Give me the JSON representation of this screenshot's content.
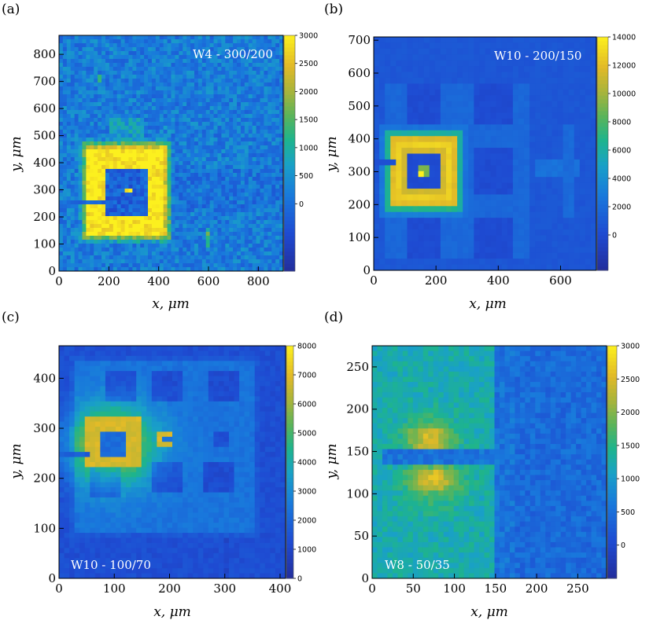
{
  "figure": {
    "panels": [
      {
        "label": "(a)"
      },
      {
        "label": "(b)"
      },
      {
        "label": "(c)"
      },
      {
        "label": "(d)"
      }
    ]
  },
  "chart_data": [
    {
      "type": "heatmap",
      "panel": "(a)",
      "title": "W4 - 300/200",
      "xlabel": "x, μm",
      "ylabel": "y, μm",
      "xlim": [
        0,
        900
      ],
      "ylim": [
        0,
        870
      ],
      "xticks": [
        0,
        200,
        400,
        600,
        800
      ],
      "yticks": [
        0,
        100,
        200,
        300,
        400,
        500,
        600,
        700,
        800
      ],
      "colorbar": {
        "range": [
          -1200,
          3000
        ],
        "ticks": [
          0,
          500,
          1000,
          1500,
          2000,
          2500,
          3000
        ]
      },
      "background_level": 250,
      "features": [
        {
          "kind": "square-ring",
          "center": [
            270,
            295
          ],
          "outer_half": [
            155,
            160
          ],
          "inner_half": [
            85,
            85
          ],
          "value": 3000
        },
        {
          "kind": "spot",
          "center": [
            280,
            295
          ],
          "value": 3000
        }
      ]
    },
    {
      "type": "heatmap",
      "panel": "(b)",
      "title": "W10 - 200/150",
      "xlabel": "x, μm",
      "ylabel": "y, μm",
      "xlim": [
        0,
        715
      ],
      "ylim": [
        0,
        710
      ],
      "xticks": [
        0,
        200,
        400,
        600
      ],
      "yticks": [
        0,
        100,
        200,
        300,
        400,
        500,
        600,
        700
      ],
      "colorbar": {
        "range": [
          -2500,
          14000
        ],
        "ticks": [
          0,
          2000,
          4000,
          6000,
          8000,
          10000,
          12000,
          14000
        ]
      },
      "background_level": 0,
      "features": [
        {
          "kind": "square-ring",
          "center": [
            160,
            300
          ],
          "outer_half": [
            110,
            110
          ],
          "inner_half": [
            60,
            60
          ],
          "value": 12500
        },
        {
          "kind": "spot",
          "center": [
            160,
            300
          ],
          "value": 13000
        }
      ]
    },
    {
      "type": "heatmap",
      "panel": "(c)",
      "title": "W10 - 100/70",
      "xlabel": "x, μm",
      "ylabel": "y, μm",
      "xlim": [
        0,
        410
      ],
      "ylim": [
        0,
        465
      ],
      "xticks": [
        0,
        100,
        200,
        300,
        400
      ],
      "yticks": [
        0,
        100,
        200,
        300,
        400
      ],
      "colorbar": {
        "range": [
          0,
          8000
        ],
        "ticks": [
          0,
          1000,
          2000,
          3000,
          4000,
          5000,
          6000,
          7000,
          8000
        ]
      },
      "background_level": 900,
      "features": [
        {
          "kind": "square-ring",
          "center": [
            95,
            270
          ],
          "outer_half": [
            55,
            55
          ],
          "inner_half": [
            28,
            28
          ],
          "value": 6500
        },
        {
          "kind": "spot",
          "center": [
            195,
            275
          ],
          "value": 7800
        }
      ]
    },
    {
      "type": "heatmap",
      "panel": "(d)",
      "title": "W8 - 50/35",
      "xlabel": "x, μm",
      "ylabel": "y, μm",
      "xlim": [
        0,
        285
      ],
      "ylim": [
        0,
        275
      ],
      "xticks": [
        0,
        50,
        100,
        150,
        200,
        250
      ],
      "yticks": [
        0,
        50,
        100,
        150,
        200,
        250
      ],
      "colorbar": {
        "range": [
          -500,
          3000
        ],
        "ticks": [
          0,
          500,
          1000,
          1500,
          2000,
          2500,
          3000
        ]
      },
      "background_level": 300,
      "features": [
        {
          "kind": "bar",
          "center": [
            70,
            165
          ],
          "value": 2400
        },
        {
          "kind": "bar",
          "center": [
            70,
            120
          ],
          "value": 2400
        }
      ]
    }
  ]
}
